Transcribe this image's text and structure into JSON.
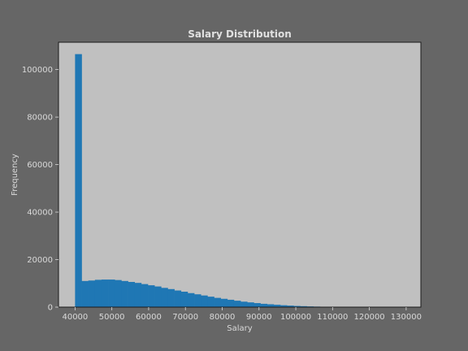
{
  "chart_data": {
    "type": "bar",
    "title": "Salary Distribution",
    "xlabel": "Salary",
    "ylabel": "Frequency",
    "xlim": [
      35500,
      134000
    ],
    "ylim": [
      0,
      111500
    ],
    "x_ticks": [
      40000,
      50000,
      60000,
      70000,
      80000,
      90000,
      100000,
      110000,
      120000,
      130000
    ],
    "y_ticks": [
      0,
      20000,
      40000,
      60000,
      80000,
      100000
    ],
    "bin_start": 40000,
    "bin_width": 1800,
    "values": [
      106500,
      11000,
      11200,
      11500,
      11600,
      11600,
      11400,
      11000,
      10600,
      10200,
      9700,
      9200,
      8700,
      8100,
      7600,
      7000,
      6500,
      5900,
      5400,
      4900,
      4400,
      3900,
      3500,
      3100,
      2700,
      2300,
      2000,
      1700,
      1400,
      1200,
      1000,
      800,
      650,
      500,
      400,
      300,
      220,
      160,
      110,
      80,
      55,
      40,
      30,
      20,
      15,
      10,
      8,
      5,
      4,
      3
    ],
    "bar_color": "#1f77b4",
    "plot_background": "#c0c0c0",
    "figure_background": "#666666",
    "grid": false,
    "legend": false
  }
}
